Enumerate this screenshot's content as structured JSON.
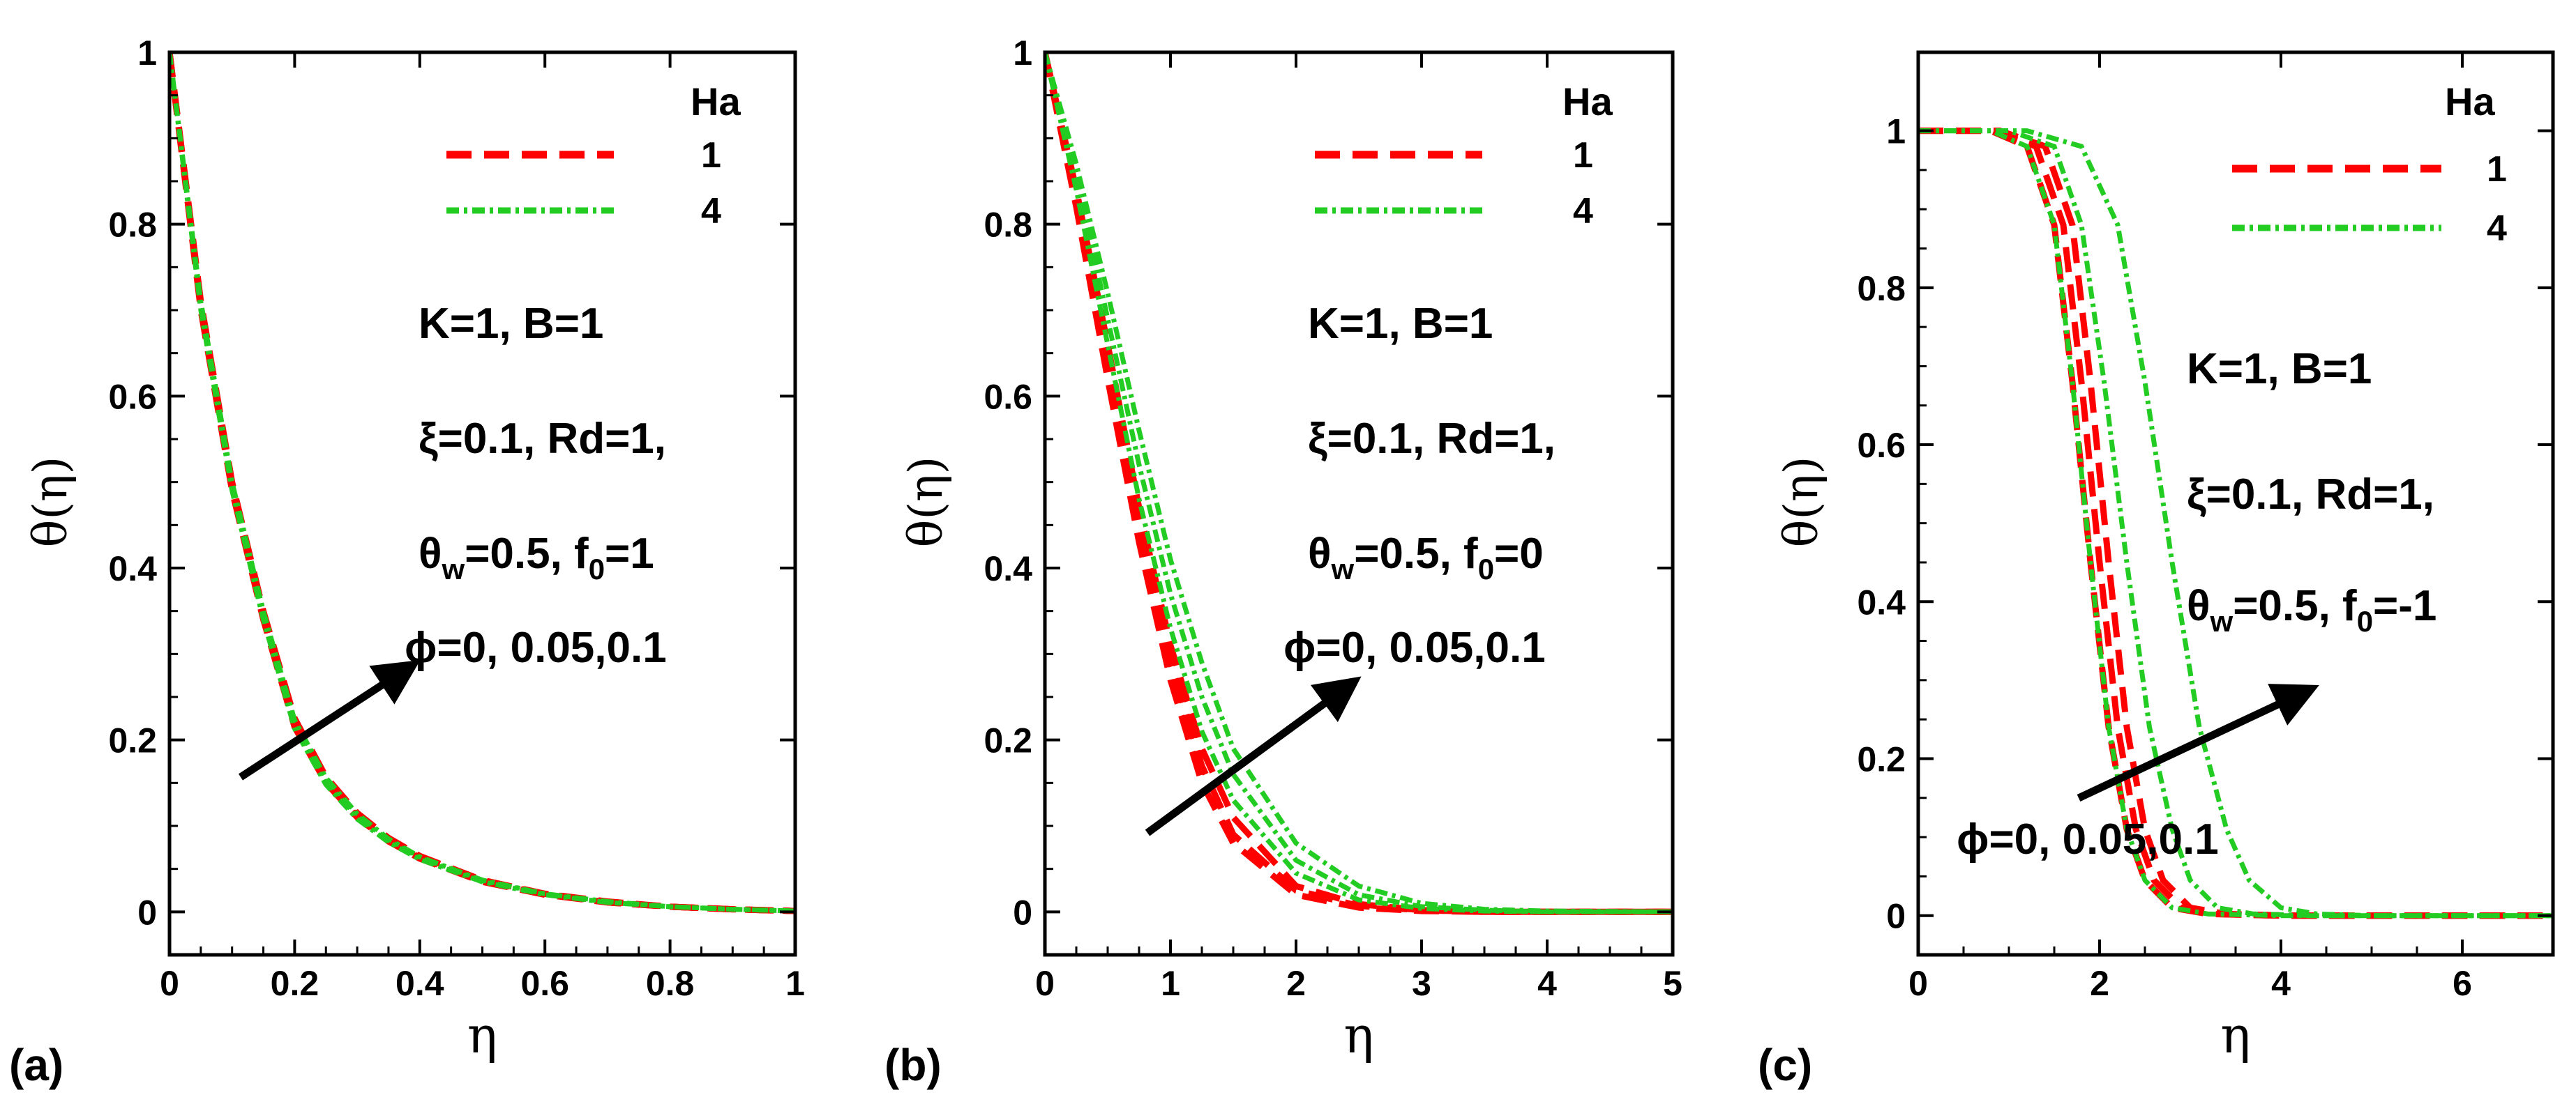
{
  "chart_data": [
    {
      "type": "line",
      "panel_label": "(a)",
      "xlabel": "η",
      "ylabel": "θ(η)",
      "xlim": [
        0,
        1
      ],
      "ylim": [
        -0.05,
        1
      ],
      "xticks": [
        0,
        0.2,
        0.4,
        0.6,
        0.8,
        1
      ],
      "yticks": [
        0,
        0.2,
        0.4,
        0.6,
        0.8,
        1
      ],
      "xtick_labels": [
        "0",
        "0.2",
        "0.4",
        "0.6",
        "0.8",
        "1"
      ],
      "ytick_labels": [
        "0",
        "0.2",
        "0.4",
        "0.6",
        "0.8",
        "1"
      ],
      "legend_title": "Ha",
      "annotations": [
        "K=1, B=1",
        "ξ=0.1, Rd=1,",
        "θw=0.5, f0=1",
        "ϕ=0, 0.05,0.1"
      ],
      "series": [
        {
          "name": "1",
          "phi": 0,
          "color": "#ff0000",
          "dash": "dashed",
          "x": [
            0,
            0.05,
            0.1,
            0.15,
            0.2,
            0.25,
            0.3,
            0.35,
            0.4,
            0.5,
            0.6,
            0.7,
            0.8,
            0.9,
            1.0
          ],
          "values": [
            1.0,
            0.7,
            0.49,
            0.34,
            0.215,
            0.15,
            0.11,
            0.082,
            0.062,
            0.035,
            0.02,
            0.011,
            0.006,
            0.003,
            0.001
          ]
        },
        {
          "name": "1",
          "phi": 0.05,
          "color": "#ff0000",
          "dash": "dashed",
          "x": [
            0,
            0.05,
            0.1,
            0.15,
            0.2,
            0.25,
            0.3,
            0.35,
            0.4,
            0.5,
            0.6,
            0.7,
            0.8,
            0.9,
            1.0
          ],
          "values": [
            1.0,
            0.705,
            0.495,
            0.345,
            0.22,
            0.153,
            0.112,
            0.084,
            0.063,
            0.036,
            0.021,
            0.011,
            0.006,
            0.003,
            0.001
          ]
        },
        {
          "name": "1",
          "phi": 0.1,
          "color": "#ff0000",
          "dash": "dashed",
          "x": [
            0,
            0.05,
            0.1,
            0.15,
            0.2,
            0.25,
            0.3,
            0.35,
            0.4,
            0.5,
            0.6,
            0.7,
            0.8,
            0.9,
            1.0
          ],
          "values": [
            1.0,
            0.71,
            0.5,
            0.35,
            0.225,
            0.157,
            0.115,
            0.086,
            0.065,
            0.037,
            0.021,
            0.012,
            0.006,
            0.003,
            0.001
          ]
        },
        {
          "name": "4",
          "phi": 0,
          "color": "#22cc22",
          "dash": "dashdot",
          "x": [
            0,
            0.05,
            0.1,
            0.15,
            0.2,
            0.25,
            0.3,
            0.35,
            0.4,
            0.5,
            0.6,
            0.7,
            0.8,
            0.9,
            1.0
          ],
          "values": [
            1.0,
            0.7,
            0.49,
            0.34,
            0.213,
            0.148,
            0.108,
            0.081,
            0.061,
            0.035,
            0.02,
            0.011,
            0.006,
            0.003,
            0.001
          ]
        },
        {
          "name": "4",
          "phi": 0.05,
          "color": "#22cc22",
          "dash": "dashdot",
          "x": [
            0,
            0.05,
            0.1,
            0.15,
            0.2,
            0.25,
            0.3,
            0.35,
            0.4,
            0.5,
            0.6,
            0.7,
            0.8,
            0.9,
            1.0
          ],
          "values": [
            1.0,
            0.705,
            0.495,
            0.345,
            0.218,
            0.152,
            0.111,
            0.083,
            0.063,
            0.036,
            0.021,
            0.011,
            0.006,
            0.003,
            0.001
          ]
        },
        {
          "name": "4",
          "phi": 0.1,
          "color": "#22cc22",
          "dash": "dashdot",
          "x": [
            0,
            0.05,
            0.1,
            0.15,
            0.2,
            0.25,
            0.3,
            0.35,
            0.4,
            0.5,
            0.6,
            0.7,
            0.8,
            0.9,
            1.0
          ],
          "values": [
            1.0,
            0.71,
            0.5,
            0.35,
            0.223,
            0.156,
            0.114,
            0.085,
            0.064,
            0.037,
            0.021,
            0.012,
            0.006,
            0.003,
            0.001
          ]
        }
      ]
    },
    {
      "type": "line",
      "panel_label": "(b)",
      "xlabel": "η",
      "ylabel": "θ(η)",
      "xlim": [
        0,
        5
      ],
      "ylim": [
        -0.05,
        1
      ],
      "xticks": [
        0,
        1,
        2,
        3,
        4,
        5
      ],
      "yticks": [
        0,
        0.2,
        0.4,
        0.6,
        0.8,
        1
      ],
      "xtick_labels": [
        "0",
        "1",
        "2",
        "3",
        "4",
        "5"
      ],
      "ytick_labels": [
        "0",
        "0.2",
        "0.4",
        "0.6",
        "0.8",
        "1"
      ],
      "legend_title": "Ha",
      "annotations": [
        "K=1, B=1",
        "ξ=0.1, Rd=1,",
        "θw=0.5, f0=0",
        "ϕ=0, 0.05,0.1"
      ],
      "series": [
        {
          "name": "1",
          "phi": 0,
          "color": "#ff0000",
          "dash": "dashed",
          "x": [
            0,
            0.25,
            0.5,
            0.75,
            1.0,
            1.25,
            1.5,
            2.0,
            2.5,
            3.0,
            3.5,
            4.0,
            5.0
          ],
          "values": [
            1.0,
            0.82,
            0.62,
            0.43,
            0.27,
            0.15,
            0.08,
            0.02,
            0.005,
            0.001,
            0.0,
            0.0,
            0.0
          ]
        },
        {
          "name": "1",
          "phi": 0.05,
          "color": "#ff0000",
          "dash": "dashed",
          "x": [
            0,
            0.25,
            0.5,
            0.75,
            1.0,
            1.25,
            1.5,
            2.0,
            2.5,
            3.0,
            3.5,
            4.0,
            5.0
          ],
          "values": [
            1.0,
            0.83,
            0.64,
            0.45,
            0.29,
            0.17,
            0.09,
            0.025,
            0.007,
            0.002,
            0.0,
            0.0,
            0.0
          ]
        },
        {
          "name": "1",
          "phi": 0.1,
          "color": "#ff0000",
          "dash": "dashed",
          "x": [
            0,
            0.25,
            0.5,
            0.75,
            1.0,
            1.25,
            1.5,
            2.0,
            2.5,
            3.0,
            3.5,
            4.0,
            5.0
          ],
          "values": [
            1.0,
            0.84,
            0.66,
            0.47,
            0.31,
            0.19,
            0.11,
            0.03,
            0.009,
            0.002,
            0.0,
            0.0,
            0.0
          ]
        },
        {
          "name": "4",
          "phi": 0,
          "color": "#22cc22",
          "dash": "dashdot",
          "x": [
            0,
            0.25,
            0.5,
            0.75,
            1.0,
            1.25,
            1.5,
            2.0,
            2.5,
            3.0,
            3.5,
            4.0,
            5.0
          ],
          "values": [
            1.0,
            0.84,
            0.66,
            0.48,
            0.33,
            0.21,
            0.13,
            0.045,
            0.014,
            0.004,
            0.001,
            0.0,
            0.0
          ]
        },
        {
          "name": "4",
          "phi": 0.05,
          "color": "#22cc22",
          "dash": "dashdot",
          "x": [
            0,
            0.25,
            0.5,
            0.75,
            1.0,
            1.25,
            1.5,
            2.0,
            2.5,
            3.0,
            3.5,
            4.0,
            5.0
          ],
          "values": [
            1.0,
            0.86,
            0.69,
            0.52,
            0.37,
            0.25,
            0.16,
            0.06,
            0.02,
            0.006,
            0.002,
            0.0,
            0.0
          ]
        },
        {
          "name": "4",
          "phi": 0.1,
          "color": "#22cc22",
          "dash": "dashdot",
          "x": [
            0,
            0.25,
            0.5,
            0.75,
            1.0,
            1.25,
            1.5,
            2.0,
            2.5,
            3.0,
            3.5,
            4.0,
            5.0
          ],
          "values": [
            1.0,
            0.87,
            0.72,
            0.56,
            0.41,
            0.29,
            0.19,
            0.08,
            0.03,
            0.01,
            0.003,
            0.001,
            0.0
          ]
        }
      ]
    },
    {
      "type": "line",
      "panel_label": "(c)",
      "xlabel": "η",
      "ylabel": "θ(η)",
      "xlim": [
        0,
        7
      ],
      "ylim": [
        -0.05,
        1.1
      ],
      "xticks": [
        0,
        2,
        4,
        6
      ],
      "yticks": [
        0,
        0.2,
        0.4,
        0.6,
        0.8,
        1
      ],
      "xtick_labels": [
        "0",
        "2",
        "4",
        "6"
      ],
      "ytick_labels": [
        "0",
        "0.2",
        "0.4",
        "0.6",
        "0.8",
        "1"
      ],
      "legend_title": "Ha",
      "annotations": [
        "K=1, B=1",
        "ξ=0.1, Rd=1,",
        "θw=0.5, f0=-1",
        "ϕ=0, 0.05,0.1"
      ],
      "series": [
        {
          "name": "1",
          "phi": 0,
          "color": "#ff0000",
          "dash": "dashed",
          "x": [
            0,
            0.8,
            1.2,
            1.5,
            1.7,
            1.9,
            2.1,
            2.3,
            2.5,
            2.8,
            3.2,
            4.0,
            5.0,
            7.0
          ],
          "values": [
            1.0,
            1.0,
            0.98,
            0.88,
            0.68,
            0.45,
            0.24,
            0.11,
            0.045,
            0.01,
            0.002,
            0.0,
            0.0,
            0.0
          ]
        },
        {
          "name": "1",
          "phi": 0.05,
          "color": "#ff0000",
          "dash": "dashed",
          "x": [
            0,
            0.8,
            1.3,
            1.6,
            1.8,
            2.0,
            2.2,
            2.4,
            2.6,
            2.9,
            3.3,
            4.0,
            5.0,
            7.0
          ],
          "values": [
            1.0,
            1.0,
            0.98,
            0.88,
            0.68,
            0.45,
            0.24,
            0.11,
            0.045,
            0.01,
            0.002,
            0.0,
            0.0,
            0.0
          ]
        },
        {
          "name": "1",
          "phi": 0.1,
          "color": "#ff0000",
          "dash": "dashed",
          "x": [
            0,
            0.9,
            1.4,
            1.7,
            1.9,
            2.1,
            2.3,
            2.5,
            2.7,
            3.0,
            3.4,
            4.1,
            5.0,
            7.0
          ],
          "values": [
            1.0,
            1.0,
            0.98,
            0.88,
            0.68,
            0.45,
            0.24,
            0.11,
            0.045,
            0.01,
            0.002,
            0.0,
            0.0,
            0.0
          ]
        },
        {
          "name": "4",
          "phi": 0,
          "color": "#22cc22",
          "dash": "dashdot",
          "x": [
            0,
            0.8,
            1.2,
            1.5,
            1.7,
            1.9,
            2.1,
            2.3,
            2.5,
            2.8,
            3.2,
            4.0,
            5.0,
            7.0
          ],
          "values": [
            1.0,
            1.0,
            0.98,
            0.88,
            0.68,
            0.45,
            0.24,
            0.11,
            0.045,
            0.01,
            0.002,
            0.0,
            0.0,
            0.0
          ]
        },
        {
          "name": "4",
          "phi": 0.05,
          "color": "#22cc22",
          "dash": "dashdot",
          "x": [
            0,
            1.0,
            1.5,
            1.8,
            2.05,
            2.3,
            2.55,
            2.8,
            3.0,
            3.3,
            3.7,
            4.4,
            5.2,
            7.0
          ],
          "values": [
            1.0,
            1.0,
            0.98,
            0.88,
            0.68,
            0.45,
            0.24,
            0.11,
            0.045,
            0.01,
            0.002,
            0.0,
            0.0,
            0.0
          ]
        },
        {
          "name": "4",
          "phi": 0.1,
          "color": "#22cc22",
          "dash": "dashdot",
          "x": [
            0,
            1.2,
            1.8,
            2.2,
            2.5,
            2.8,
            3.1,
            3.4,
            3.65,
            4.0,
            4.4,
            5.0,
            5.6,
            7.0
          ],
          "values": [
            1.0,
            1.0,
            0.98,
            0.88,
            0.68,
            0.45,
            0.24,
            0.11,
            0.045,
            0.01,
            0.002,
            0.0,
            0.0,
            0.0
          ]
        }
      ]
    }
  ]
}
